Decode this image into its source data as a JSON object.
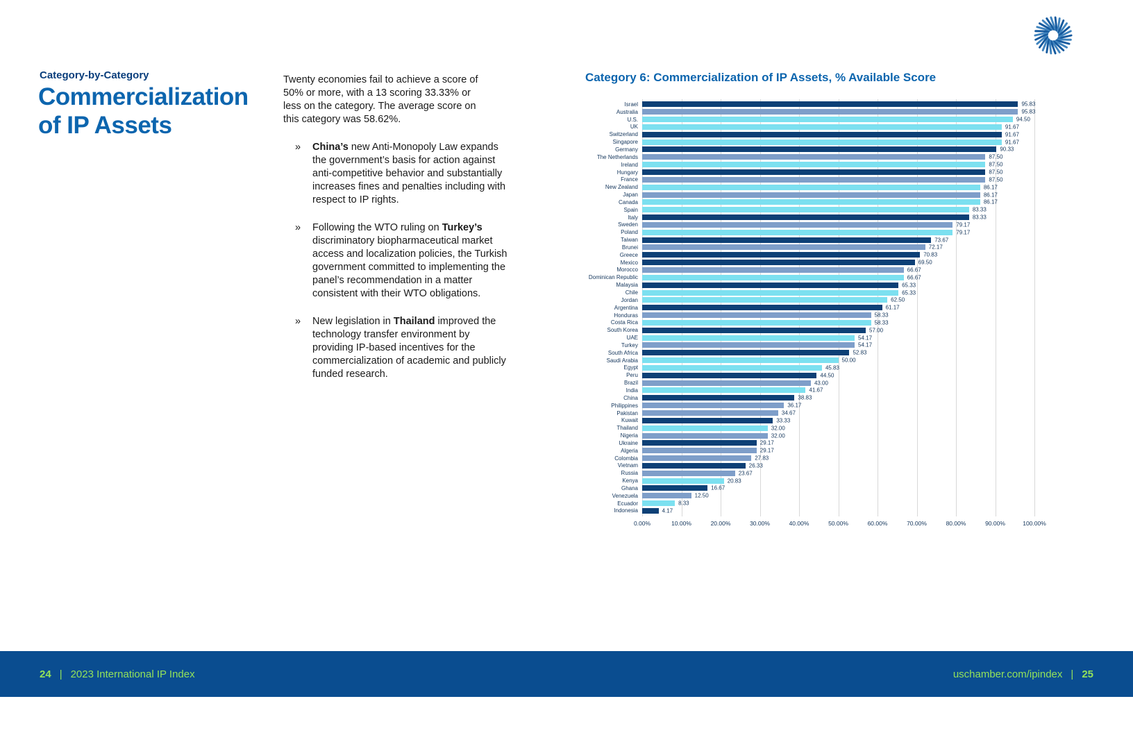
{
  "page": {
    "kicker": "Category-by-Category",
    "title": "Commercialization of IP Assets"
  },
  "intro": "Twenty economies fail to achieve a score of 50% or more, with a 13 scoring 33.33% or less on the category. The average score on this category was 58.62%.",
  "bullets": [
    {
      "marker": "»",
      "segments": [
        {
          "text": "China’s",
          "bold": true
        },
        {
          "text": " new Anti-Monopoly Law expands the government’s basis for action against anti-competitive behavior and substantially increases fines and penalties including with respect to IP rights.",
          "bold": false
        }
      ]
    },
    {
      "marker": "»",
      "segments": [
        {
          "text": "Following the WTO ruling on ",
          "bold": false
        },
        {
          "text": "Turkey’s",
          "bold": true
        },
        {
          "text": " discriminatory biopharmaceutical market access and localization policies, the Turkish government committed to implementing the panel’s recommendation in a matter consistent with their WTO obligations.",
          "bold": false
        }
      ]
    },
    {
      "marker": "»",
      "segments": [
        {
          "text": "New legislation in ",
          "bold": false
        },
        {
          "text": "Thailand",
          "bold": true
        },
        {
          "text": " improved the technology transfer environment by providing IP-based incentives for the commercialization of academic and publicly funded research.",
          "bold": false
        }
      ]
    }
  ],
  "chart_data": {
    "type": "bar",
    "orientation": "horizontal",
    "title": "Category 6: Commercialization of IP Assets, % Available Score",
    "xlim": [
      0,
      100
    ],
    "grid": true,
    "value_labels": true,
    "x_tick_labels": [
      "0.00%",
      "10.00%",
      "20.00%",
      "30.00%",
      "40.00%",
      "50.00%",
      "60.00%",
      "70.00%",
      "80.00%",
      "90.00%",
      "100.00%"
    ],
    "palette": {
      "navy": "#0D4076",
      "steel": "#7E9EC9",
      "cyan": "#7CE0F0"
    },
    "rows": [
      {
        "label": "Israel",
        "value": 95.83,
        "color": "navy"
      },
      {
        "label": "Australia",
        "value": 95.83,
        "color": "steel"
      },
      {
        "label": "U.S.",
        "value": 94.5,
        "color": "cyan"
      },
      {
        "label": "UK",
        "value": 91.67,
        "color": "cyan"
      },
      {
        "label": "Switzerland",
        "value": 91.67,
        "color": "navy"
      },
      {
        "label": "Singapore",
        "value": 91.67,
        "color": "cyan"
      },
      {
        "label": "Germany",
        "value": 90.33,
        "color": "navy"
      },
      {
        "label": "The Netherlands",
        "value": 87.5,
        "color": "steel"
      },
      {
        "label": "Ireland",
        "value": 87.5,
        "color": "cyan"
      },
      {
        "label": "Hungary",
        "value": 87.5,
        "color": "navy"
      },
      {
        "label": "France",
        "value": 87.5,
        "color": "steel"
      },
      {
        "label": "New Zealand",
        "value": 86.17,
        "color": "cyan"
      },
      {
        "label": "Japan",
        "value": 86.17,
        "color": "steel"
      },
      {
        "label": "Canada",
        "value": 86.17,
        "color": "cyan"
      },
      {
        "label": "Spain",
        "value": 83.33,
        "color": "cyan"
      },
      {
        "label": "Italy",
        "value": 83.33,
        "color": "navy"
      },
      {
        "label": "Sweden",
        "value": 79.17,
        "color": "steel"
      },
      {
        "label": "Poland",
        "value": 79.17,
        "color": "cyan"
      },
      {
        "label": "Taiwan",
        "value": 73.67,
        "color": "navy"
      },
      {
        "label": "Brunei",
        "value": 72.17,
        "color": "steel"
      },
      {
        "label": "Greece",
        "value": 70.83,
        "color": "navy"
      },
      {
        "label": "Mexico",
        "value": 69.5,
        "color": "navy"
      },
      {
        "label": "Morocco",
        "value": 66.67,
        "color": "steel"
      },
      {
        "label": "Dominican Republic",
        "value": 66.67,
        "color": "cyan"
      },
      {
        "label": "Malaysia",
        "value": 65.33,
        "color": "navy"
      },
      {
        "label": "Chile",
        "value": 65.33,
        "color": "cyan"
      },
      {
        "label": "Jordan",
        "value": 62.5,
        "color": "cyan"
      },
      {
        "label": "Argentina",
        "value": 61.17,
        "color": "navy"
      },
      {
        "label": "Honduras",
        "value": 58.33,
        "color": "steel"
      },
      {
        "label": "Costa Rica",
        "value": 58.33,
        "color": "cyan"
      },
      {
        "label": "South Korea",
        "value": 57.0,
        "color": "navy"
      },
      {
        "label": "UAE",
        "value": 54.17,
        "color": "cyan"
      },
      {
        "label": "Turkey",
        "value": 54.17,
        "color": "steel"
      },
      {
        "label": "South Africa",
        "value": 52.83,
        "color": "navy"
      },
      {
        "label": "Saudi Arabia",
        "value": 50.0,
        "color": "cyan"
      },
      {
        "label": "Egypt",
        "value": 45.83,
        "color": "cyan"
      },
      {
        "label": "Peru",
        "value": 44.5,
        "color": "navy"
      },
      {
        "label": "Brazil",
        "value": 43.0,
        "color": "steel"
      },
      {
        "label": "India",
        "value": 41.67,
        "color": "cyan"
      },
      {
        "label": "China",
        "value": 38.83,
        "color": "navy"
      },
      {
        "label": "Philippines",
        "value": 36.17,
        "color": "steel"
      },
      {
        "label": "Pakistan",
        "value": 34.67,
        "color": "steel"
      },
      {
        "label": "Kuwait",
        "value": 33.33,
        "color": "navy"
      },
      {
        "label": "Thailand",
        "value": 32.0,
        "color": "cyan"
      },
      {
        "label": "Nigeria",
        "value": 32.0,
        "color": "steel"
      },
      {
        "label": "Ukraine",
        "value": 29.17,
        "color": "navy"
      },
      {
        "label": "Algeria",
        "value": 29.17,
        "color": "steel"
      },
      {
        "label": "Colombia",
        "value": 27.83,
        "color": "steel"
      },
      {
        "label": "Vietnam",
        "value": 26.33,
        "color": "navy"
      },
      {
        "label": "Russia",
        "value": 23.67,
        "color": "steel"
      },
      {
        "label": "Kenya",
        "value": 20.83,
        "color": "cyan"
      },
      {
        "label": "Ghana",
        "value": 16.67,
        "color": "navy"
      },
      {
        "label": "Venezuela",
        "value": 12.5,
        "color": "steel"
      },
      {
        "label": "Ecuador",
        "value": 8.33,
        "color": "cyan"
      },
      {
        "label": "Indonesia",
        "value": 4.17,
        "color": "navy"
      }
    ]
  },
  "footer": {
    "left_page": "24",
    "separator": "|",
    "left_text": "2023 International IP Index",
    "right_text": "uschamber.com/ipindex",
    "right_page": "25"
  },
  "icons": {
    "logo": "us-chamber-sunburst-logo"
  },
  "colors": {
    "accent_blue": "#0C65AE",
    "dark_navy": "#0A3E7C",
    "body_text": "#1A1A1A",
    "footer_band": "#0A4D90",
    "footer_text": "#93E25A",
    "gridline": "#D8D8D8",
    "chart_label": "#14365C"
  }
}
